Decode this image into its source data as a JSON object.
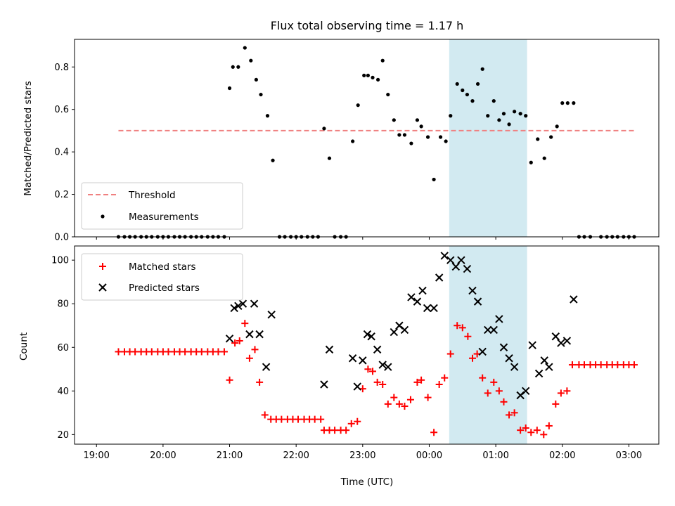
{
  "chart_data": [
    {
      "type": "scatter",
      "title": "Flux total observing time = 1.17 h",
      "xlabel": "",
      "ylabel": "Matched/Predicted stars",
      "ylim": [
        0,
        0.93
      ],
      "yticks": [
        0.0,
        0.2,
        0.4,
        0.6,
        0.8
      ],
      "yticklabels": [
        "0.0",
        "0.2",
        "0.4",
        "0.6",
        "0.8"
      ],
      "highlight_span": {
        "start": 5.3,
        "end": 6.47,
        "color": "#add8e6"
      },
      "legend_position": "lower-left",
      "threshold": {
        "name": "Threshold",
        "y": 0.5,
        "x_start": 0.33,
        "x_end": 8.08,
        "color": "#f08080"
      },
      "series": [
        {
          "name": "Measurements",
          "color": "#000000",
          "marker": "dot",
          "points": [
            [
              0.33,
              0
            ],
            [
              0.42,
              0
            ],
            [
              0.5,
              0
            ],
            [
              0.58,
              0
            ],
            [
              0.67,
              0
            ],
            [
              0.75,
              0
            ],
            [
              0.83,
              0
            ],
            [
              0.92,
              0
            ],
            [
              1.0,
              0
            ],
            [
              1.08,
              0
            ],
            [
              1.17,
              0
            ],
            [
              1.25,
              0
            ],
            [
              1.33,
              0
            ],
            [
              1.42,
              0
            ],
            [
              1.5,
              0
            ],
            [
              1.58,
              0
            ],
            [
              1.67,
              0
            ],
            [
              1.75,
              0
            ],
            [
              1.83,
              0
            ],
            [
              1.92,
              0
            ],
            [
              2.0,
              0.7
            ],
            [
              2.05,
              0.8
            ],
            [
              2.13,
              0.8
            ],
            [
              2.23,
              0.89
            ],
            [
              2.32,
              0.83
            ],
            [
              2.4,
              0.74
            ],
            [
              2.47,
              0.67
            ],
            [
              2.57,
              0.57
            ],
            [
              2.65,
              0.36
            ],
            [
              2.75,
              0
            ],
            [
              2.83,
              0
            ],
            [
              2.92,
              0
            ],
            [
              3.0,
              0
            ],
            [
              3.08,
              0
            ],
            [
              3.17,
              0
            ],
            [
              3.25,
              0
            ],
            [
              3.33,
              0
            ],
            [
              3.42,
              0.51
            ],
            [
              3.5,
              0.37
            ],
            [
              3.58,
              0
            ],
            [
              3.67,
              0
            ],
            [
              3.75,
              0
            ],
            [
              3.85,
              0.45
            ],
            [
              3.93,
              0.62
            ],
            [
              4.02,
              0.76
            ],
            [
              4.08,
              0.76
            ],
            [
              4.15,
              0.75
            ],
            [
              4.23,
              0.74
            ],
            [
              4.3,
              0.83
            ],
            [
              4.38,
              0.67
            ],
            [
              4.47,
              0.55
            ],
            [
              4.55,
              0.48
            ],
            [
              4.63,
              0.48
            ],
            [
              4.73,
              0.44
            ],
            [
              4.82,
              0.55
            ],
            [
              4.88,
              0.52
            ],
            [
              4.98,
              0.47
            ],
            [
              5.07,
              0.27
            ],
            [
              5.17,
              0.47
            ],
            [
              5.25,
              0.45
            ],
            [
              5.32,
              0.57
            ],
            [
              5.42,
              0.72
            ],
            [
              5.5,
              0.69
            ],
            [
              5.57,
              0.67
            ],
            [
              5.65,
              0.64
            ],
            [
              5.73,
              0.72
            ],
            [
              5.8,
              0.79
            ],
            [
              5.88,
              0.57
            ],
            [
              5.97,
              0.64
            ],
            [
              6.05,
              0.55
            ],
            [
              6.12,
              0.58
            ],
            [
              6.2,
              0.53
            ],
            [
              6.28,
              0.59
            ],
            [
              6.37,
              0.58
            ],
            [
              6.45,
              0.57
            ],
            [
              6.53,
              0.35
            ],
            [
              6.63,
              0.46
            ],
            [
              6.73,
              0.37
            ],
            [
              6.83,
              0.47
            ],
            [
              6.92,
              0.52
            ],
            [
              7.0,
              0.63
            ],
            [
              7.08,
              0.63
            ],
            [
              7.17,
              0.63
            ],
            [
              7.25,
              0
            ],
            [
              7.33,
              0
            ],
            [
              7.42,
              0
            ],
            [
              7.58,
              0
            ],
            [
              7.67,
              0
            ],
            [
              7.75,
              0
            ],
            [
              7.83,
              0
            ],
            [
              7.92,
              0
            ],
            [
              8.0,
              0
            ],
            [
              8.08,
              0
            ]
          ]
        }
      ]
    },
    {
      "type": "scatter",
      "title": "",
      "xlabel": "Time (UTC)",
      "ylabel": "Count",
      "ylim": [
        15.6,
        106.5
      ],
      "yticks": [
        20,
        40,
        60,
        80,
        100
      ],
      "yticklabels": [
        "20",
        "40",
        "60",
        "80",
        "100"
      ],
      "xlim": [
        -0.33,
        8.45
      ],
      "xticks": [
        0,
        1,
        2,
        3,
        4,
        5,
        6,
        7,
        8
      ],
      "xticklabels": [
        "19:00",
        "20:00",
        "21:00",
        "22:00",
        "23:00",
        "00:00",
        "01:00",
        "02:00",
        "03:00"
      ],
      "highlight_span": {
        "start": 5.3,
        "end": 6.47,
        "color": "#add8e6"
      },
      "legend_position": "upper-left",
      "series": [
        {
          "name": "Matched stars",
          "color": "#ff0000",
          "marker": "plus",
          "points": [
            [
              0.33,
              58
            ],
            [
              0.42,
              58
            ],
            [
              0.5,
              58
            ],
            [
              0.58,
              58
            ],
            [
              0.67,
              58
            ],
            [
              0.75,
              58
            ],
            [
              0.83,
              58
            ],
            [
              0.92,
              58
            ],
            [
              1.0,
              58
            ],
            [
              1.08,
              58
            ],
            [
              1.17,
              58
            ],
            [
              1.25,
              58
            ],
            [
              1.33,
              58
            ],
            [
              1.42,
              58
            ],
            [
              1.5,
              58
            ],
            [
              1.58,
              58
            ],
            [
              1.67,
              58
            ],
            [
              1.75,
              58
            ],
            [
              1.83,
              58
            ],
            [
              1.92,
              58
            ],
            [
              2.0,
              45
            ],
            [
              2.08,
              62
            ],
            [
              2.15,
              63
            ],
            [
              2.23,
              71
            ],
            [
              2.3,
              55
            ],
            [
              2.38,
              59
            ],
            [
              2.45,
              44
            ],
            [
              2.53,
              29
            ],
            [
              2.62,
              27
            ],
            [
              2.7,
              27
            ],
            [
              2.78,
              27
            ],
            [
              2.87,
              27
            ],
            [
              2.95,
              27
            ],
            [
              3.03,
              27
            ],
            [
              3.12,
              27
            ],
            [
              3.2,
              27
            ],
            [
              3.28,
              27
            ],
            [
              3.37,
              27
            ],
            [
              3.42,
              22
            ],
            [
              3.5,
              22
            ],
            [
              3.58,
              22
            ],
            [
              3.67,
              22
            ],
            [
              3.75,
              22
            ],
            [
              3.83,
              25
            ],
            [
              3.92,
              26
            ],
            [
              4.0,
              41
            ],
            [
              4.08,
              50
            ],
            [
              4.15,
              49
            ],
            [
              4.22,
              44
            ],
            [
              4.3,
              43
            ],
            [
              4.38,
              34
            ],
            [
              4.47,
              37
            ],
            [
              4.55,
              34
            ],
            [
              4.63,
              33
            ],
            [
              4.72,
              36
            ],
            [
              4.82,
              44
            ],
            [
              4.88,
              45
            ],
            [
              4.98,
              37
            ],
            [
              5.07,
              21
            ],
            [
              5.15,
              43
            ],
            [
              5.23,
              46
            ],
            [
              5.32,
              57
            ],
            [
              5.42,
              70
            ],
            [
              5.5,
              69
            ],
            [
              5.58,
              65
            ],
            [
              5.65,
              55
            ],
            [
              5.72,
              57
            ],
            [
              5.8,
              46
            ],
            [
              5.88,
              39
            ],
            [
              5.97,
              44
            ],
            [
              6.05,
              40
            ],
            [
              6.12,
              35
            ],
            [
              6.2,
              29
            ],
            [
              6.28,
              30
            ],
            [
              6.37,
              22
            ],
            [
              6.45,
              23
            ],
            [
              6.53,
              21
            ],
            [
              6.62,
              22
            ],
            [
              6.72,
              20
            ],
            [
              6.8,
              24
            ],
            [
              6.9,
              34
            ],
            [
              6.98,
              39
            ],
            [
              7.07,
              40
            ],
            [
              7.15,
              52
            ],
            [
              7.25,
              52
            ],
            [
              7.33,
              52
            ],
            [
              7.42,
              52
            ],
            [
              7.5,
              52
            ],
            [
              7.58,
              52
            ],
            [
              7.67,
              52
            ],
            [
              7.75,
              52
            ],
            [
              7.83,
              52
            ],
            [
              7.92,
              52
            ],
            [
              8.0,
              52
            ],
            [
              8.08,
              52
            ]
          ]
        },
        {
          "name": "Predicted stars",
          "color": "#000000",
          "marker": "x",
          "points": [
            [
              2.0,
              64
            ],
            [
              2.07,
              78
            ],
            [
              2.13,
              79
            ],
            [
              2.2,
              80
            ],
            [
              2.3,
              66
            ],
            [
              2.37,
              80
            ],
            [
              2.45,
              66
            ],
            [
              2.55,
              51
            ],
            [
              2.63,
              75
            ],
            [
              3.42,
              43
            ],
            [
              3.5,
              59
            ],
            [
              3.85,
              55
            ],
            [
              3.92,
              42
            ],
            [
              4.0,
              54
            ],
            [
              4.07,
              66
            ],
            [
              4.13,
              65
            ],
            [
              4.22,
              59
            ],
            [
              4.3,
              52
            ],
            [
              4.38,
              51
            ],
            [
              4.47,
              67
            ],
            [
              4.55,
              70
            ],
            [
              4.63,
              68
            ],
            [
              4.73,
              83
            ],
            [
              4.82,
              81
            ],
            [
              4.9,
              86
            ],
            [
              4.97,
              78
            ],
            [
              5.07,
              78
            ],
            [
              5.15,
              92
            ],
            [
              5.23,
              102
            ],
            [
              5.32,
              100
            ],
            [
              5.4,
              97
            ],
            [
              5.48,
              100
            ],
            [
              5.57,
              96
            ],
            [
              5.65,
              86
            ],
            [
              5.73,
              81
            ],
            [
              5.8,
              58
            ],
            [
              5.88,
              68
            ],
            [
              5.97,
              68
            ],
            [
              6.05,
              73
            ],
            [
              6.12,
              60
            ],
            [
              6.2,
              55
            ],
            [
              6.28,
              51
            ],
            [
              6.37,
              38
            ],
            [
              6.45,
              40
            ],
            [
              6.55,
              61
            ],
            [
              6.65,
              48
            ],
            [
              6.73,
              54
            ],
            [
              6.8,
              51
            ],
            [
              6.9,
              65
            ],
            [
              6.98,
              62
            ],
            [
              7.07,
              63
            ],
            [
              7.17,
              82
            ]
          ]
        }
      ]
    }
  ]
}
